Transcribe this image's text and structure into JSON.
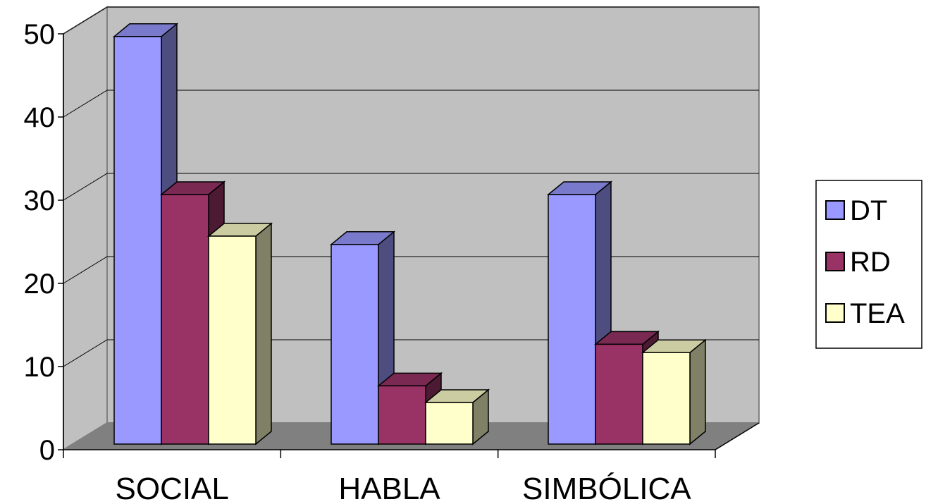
{
  "chart_data": {
    "type": "bar",
    "categories": [
      "SOCIAL",
      "HABLA",
      "SIMBÓLICA"
    ],
    "series": [
      {
        "name": "DT",
        "values": [
          49,
          24,
          30
        ],
        "color": "#9999ff"
      },
      {
        "name": "RD",
        "values": [
          30,
          7,
          12
        ],
        "color": "#993366"
      },
      {
        "name": "TEA",
        "values": [
          25,
          5,
          11
        ],
        "color": "#ffffcc"
      }
    ],
    "yticks": [
      "0",
      "10",
      "20",
      "30",
      "40",
      "50"
    ],
    "ylim": [
      0,
      50
    ],
    "grid": true,
    "legend_position": "right",
    "style": "3d-clustered-column",
    "wall_color": "#c0c0c0",
    "floor_color": "#808080"
  }
}
